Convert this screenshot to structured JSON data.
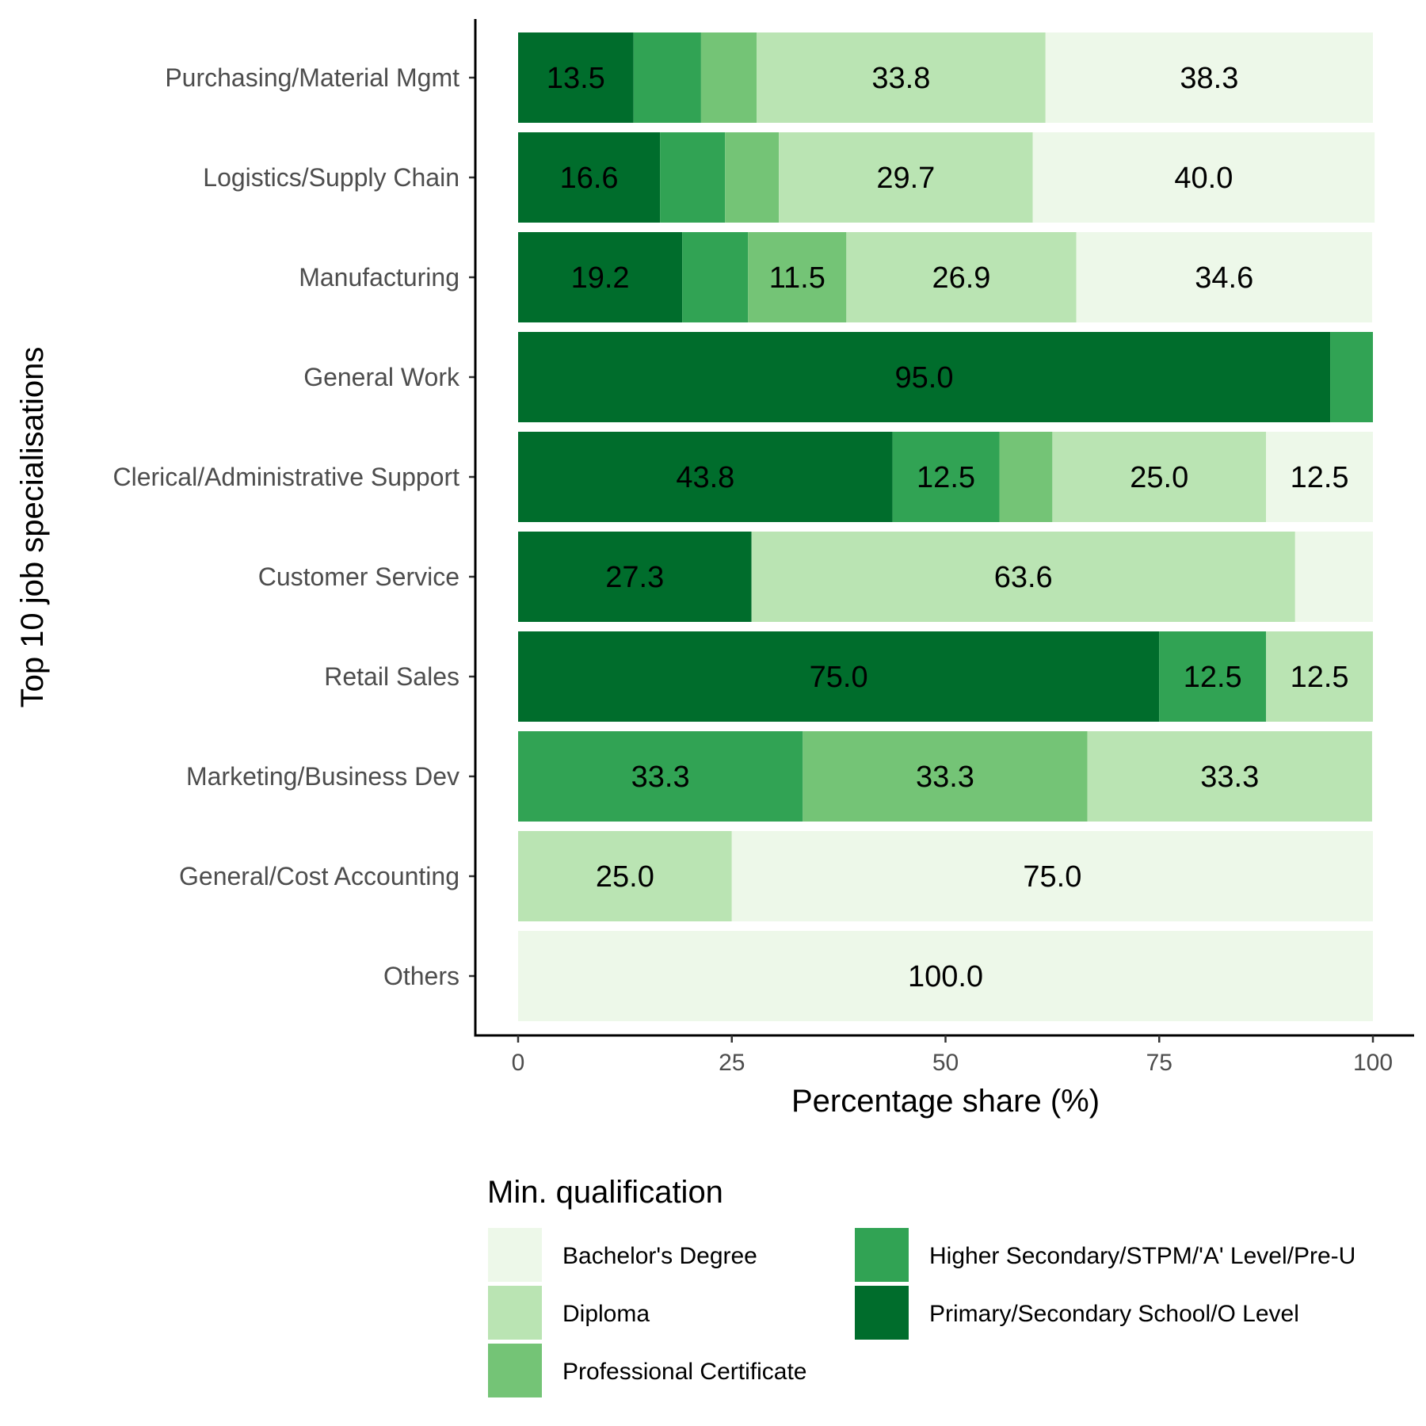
{
  "chart_data": {
    "type": "bar",
    "orientation": "horizontal",
    "stacked": true,
    "xlabel": "Percentage share (%)",
    "ylabel": "Top 10 job specialisations",
    "xlim": [
      0,
      100
    ],
    "x_ticks": [
      0,
      25,
      50,
      75,
      100
    ],
    "grid": false,
    "legend_position": "bottom",
    "legend_title": "Min. qualification",
    "categories": [
      "Purchasing/Material Mgmt",
      "Logistics/Supply Chain",
      "Manufacturing",
      "General Work",
      "Clerical/Administrative Support",
      "Customer Service",
      "Retail Sales",
      "Marketing/Business Dev",
      "General/Cost Accounting",
      "Others"
    ],
    "stack_order": [
      "Primary/Secondary School/O Level",
      "Higher Secondary/STPM/'A' Level/Pre-U",
      "Professional Certificate",
      "Diploma",
      "Bachelor's Degree"
    ],
    "legend_order": [
      "Bachelor's Degree",
      "Diploma",
      "Professional Certificate",
      "Higher Secondary/STPM/'A' Level/Pre-U",
      "Primary/Secondary School/O Level"
    ],
    "series": [
      {
        "name": "Primary/Secondary School/O Level",
        "color": "#006d2c",
        "values": [
          13.5,
          16.6,
          19.2,
          95.0,
          43.8,
          27.3,
          75.0,
          0,
          0,
          0
        ],
        "labels": [
          "13.5",
          "16.6",
          "19.2",
          "95.0",
          "43.8",
          "27.3",
          "75.0",
          "",
          "",
          ""
        ]
      },
      {
        "name": "Higher Secondary/STPM/'A' Level/Pre-U",
        "color": "#31a354",
        "values": [
          7.9,
          7.6,
          7.7,
          5.0,
          12.5,
          0,
          12.5,
          33.3,
          0,
          0
        ],
        "labels": [
          "",
          "",
          "",
          "",
          "12.5",
          "",
          "12.5",
          "33.3",
          "",
          ""
        ]
      },
      {
        "name": "Professional Certificate",
        "color": "#74c476",
        "values": [
          6.5,
          6.3,
          11.5,
          0,
          6.2,
          0,
          0,
          33.3,
          0,
          0
        ],
        "labels": [
          "",
          "",
          "11.5",
          "",
          "",
          "",
          "",
          "33.3",
          "",
          ""
        ]
      },
      {
        "name": "Diploma",
        "color": "#bae4b3",
        "values": [
          33.8,
          29.7,
          26.9,
          0,
          25.0,
          63.6,
          12.5,
          33.3,
          25.0,
          0
        ],
        "labels": [
          "33.8",
          "29.7",
          "26.9",
          "",
          "25.0",
          "63.6",
          "12.5",
          "33.3",
          "25.0",
          ""
        ]
      },
      {
        "name": "Bachelor's Degree",
        "color": "#edf8e9",
        "values": [
          38.3,
          40.0,
          34.6,
          0,
          12.5,
          9.1,
          0,
          0,
          75.0,
          100.0
        ],
        "labels": [
          "38.3",
          "40.0",
          "34.6",
          "",
          "12.5",
          "",
          "",
          "",
          "75.0",
          "100.0"
        ]
      }
    ]
  }
}
